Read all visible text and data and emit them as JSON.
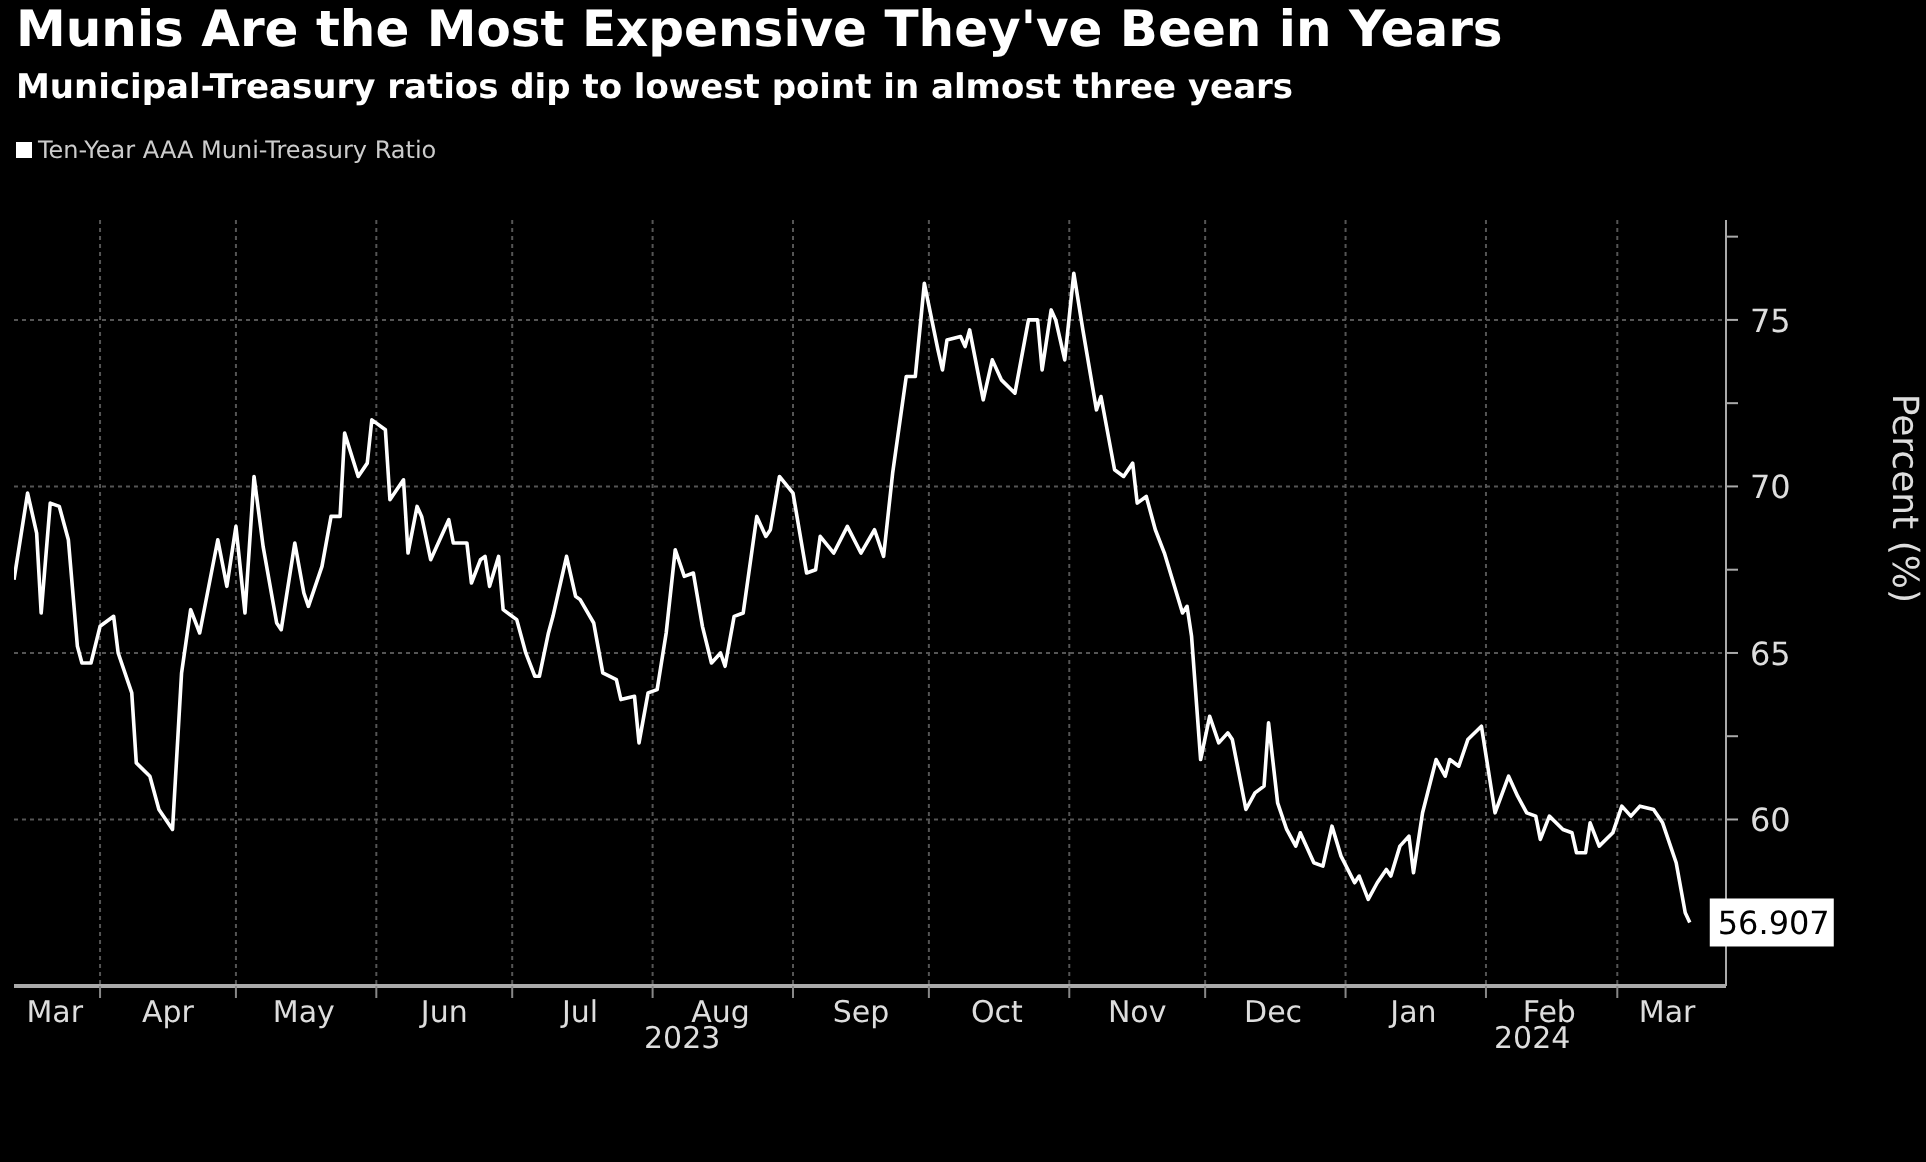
{
  "chart_data": {
    "type": "line",
    "title": "Munis Are the Most Expensive They've Been in Years",
    "subtitle": "Municipal-Treasury ratios dip to lowest point in almost three years",
    "ylabel": "Percent (%)",
    "legend": "top left",
    "grid": true,
    "xlim": [
      "2023-03-13",
      "2024-03-25"
    ],
    "xticks": [
      {
        "value": "2023-03-22",
        "label": "Mar"
      },
      {
        "value": "2023-04-01",
        "label": null
      },
      {
        "value": "2023-04-16",
        "label": "Apr"
      },
      {
        "value": "2023-05-01",
        "label": null
      },
      {
        "value": "2023-05-16",
        "label": "May"
      },
      {
        "value": "2023-06-01",
        "label": null
      },
      {
        "value": "2023-06-16",
        "label": "Jun"
      },
      {
        "value": "2023-07-01",
        "label": null
      },
      {
        "value": "2023-07-16",
        "label": "Jul"
      },
      {
        "value": "2023-08-01",
        "label": null
      },
      {
        "value": "2023-08-16",
        "label": "Aug"
      },
      {
        "value": "2023-09-01",
        "label": null
      },
      {
        "value": "2023-09-16",
        "label": "Sep"
      },
      {
        "value": "2023-10-01",
        "label": null
      },
      {
        "value": "2023-10-16",
        "label": "Oct"
      },
      {
        "value": "2023-11-01",
        "label": null
      },
      {
        "value": "2023-11-16",
        "label": "Nov"
      },
      {
        "value": "2023-12-01",
        "label": null
      },
      {
        "value": "2023-12-16",
        "label": "Dec"
      },
      {
        "value": "2024-01-01",
        "label": null
      },
      {
        "value": "2024-01-16",
        "label": "Jan"
      },
      {
        "value": "2024-02-01",
        "label": null
      },
      {
        "value": "2024-02-15",
        "label": "Feb"
      },
      {
        "value": "2024-03-01",
        "label": null
      },
      {
        "value": "2024-03-12",
        "label": "Mar"
      }
    ],
    "ylim": [
      55,
      78
    ],
    "yticks": [
      {
        "value": 57.5,
        "label": null
      },
      60,
      {
        "value": 62.5,
        "label": null
      },
      65,
      {
        "value": 67.5,
        "label": null
      },
      70,
      {
        "value": 72.5,
        "label": null
      },
      75,
      {
        "value": 77.5,
        "label": null
      }
    ],
    "annotations": [
      "2023",
      "2024",
      {
        "text": "56.907",
        "x": "2024-03-17",
        "y": 56.907
      }
    ],
    "x": [
      "2023-03-13",
      "2023-03-16",
      "2023-03-18",
      "2023-03-19",
      "2023-03-21",
      "2023-03-23",
      "2023-03-25",
      "2023-03-27",
      "2023-03-28",
      "2023-03-30",
      "2023-04-01",
      "2023-04-04",
      "2023-04-05",
      "2023-04-08",
      "2023-04-09",
      "2023-04-12",
      "2023-04-14",
      "2023-04-17",
      "2023-04-19",
      "2023-04-21",
      "2023-04-23",
      "2023-04-27",
      "2023-04-29",
      "2023-05-01",
      "2023-05-03",
      "2023-05-05",
      "2023-05-07",
      "2023-05-10",
      "2023-05-11",
      "2023-05-14",
      "2023-05-16",
      "2023-05-17",
      "2023-05-20",
      "2023-05-22",
      "2023-05-24",
      "2023-05-25",
      "2023-05-28",
      "2023-05-30",
      "2023-05-31",
      "2023-06-01",
      "2023-06-03",
      "2023-06-04",
      "2023-06-07",
      "2023-06-08",
      "2023-06-10",
      "2023-06-11",
      "2023-06-13",
      "2023-06-17",
      "2023-06-18",
      "2023-06-21",
      "2023-06-22",
      "2023-06-24",
      "2023-06-25",
      "2023-06-26",
      "2023-06-28",
      "2023-06-29",
      "2023-07-02",
      "2023-07-04",
      "2023-07-06",
      "2023-07-07",
      "2023-07-09",
      "2023-07-10",
      "2023-07-13",
      "2023-07-15",
      "2023-07-16",
      "2023-07-19",
      "2023-07-21",
      "2023-07-24",
      "2023-07-25",
      "2023-07-28",
      "2023-07-29",
      "2023-07-31",
      "2023-08-02",
      "2023-08-04",
      "2023-08-06",
      "2023-08-08",
      "2023-08-10",
      "2023-08-12",
      "2023-08-14",
      "2023-08-16",
      "2023-08-17",
      "2023-08-19",
      "2023-08-21",
      "2023-08-24",
      "2023-08-26",
      "2023-08-27",
      "2023-08-29",
      "2023-09-01",
      "2023-09-04",
      "2023-09-06",
      "2023-09-07",
      "2023-09-10",
      "2023-09-13",
      "2023-09-16",
      "2023-09-19",
      "2023-09-21",
      "2023-09-23",
      "2023-09-26",
      "2023-09-28",
      "2023-09-30",
      "2023-10-03",
      "2023-10-04",
      "2023-10-05",
      "2023-10-08",
      "2023-10-09",
      "2023-10-10",
      "2023-10-13",
      "2023-10-15",
      "2023-10-17",
      "2023-10-20",
      "2023-10-23",
      "2023-10-25",
      "2023-10-26",
      "2023-10-28",
      "2023-10-29",
      "2023-10-31",
      "2023-11-02",
      "2023-11-04",
      "2023-11-07",
      "2023-11-08",
      "2023-11-11",
      "2023-11-13",
      "2023-11-15",
      "2023-11-16",
      "2023-11-18",
      "2023-11-20",
      "2023-11-22",
      "2023-11-26",
      "2023-11-27",
      "2023-11-28",
      "2023-11-30",
      "2023-12-02",
      "2023-12-04",
      "2023-12-06",
      "2023-12-07",
      "2023-12-10",
      "2023-12-12",
      "2023-12-14",
      "2023-12-15",
      "2023-12-17",
      "2023-12-19",
      "2023-12-21",
      "2023-12-22",
      "2023-12-25",
      "2023-12-27",
      "2023-12-29",
      "2023-12-31",
      "2024-01-03",
      "2024-01-04",
      "2024-01-06",
      "2024-01-08",
      "2024-01-10",
      "2024-01-11",
      "2024-01-13",
      "2024-01-15",
      "2024-01-16",
      "2024-01-18",
      "2024-01-21",
      "2024-01-23",
      "2024-01-24",
      "2024-01-26",
      "2024-01-28",
      "2024-01-31",
      "2024-02-03",
      "2024-02-06",
      "2024-02-08",
      "2024-02-10",
      "2024-02-12",
      "2024-02-13",
      "2024-02-15",
      "2024-02-18",
      "2024-02-20",
      "2024-02-21",
      "2024-02-23",
      "2024-02-24",
      "2024-02-26",
      "2024-02-29",
      "2024-03-02",
      "2024-03-04",
      "2024-03-06",
      "2024-03-09",
      "2024-03-11",
      "2024-03-14",
      "2024-03-16",
      "2024-03-17"
    ],
    "series": [
      {
        "name": "Ten-Year AAA Muni-Treasury Ratio",
        "color": "#ffffff",
        "values": [
          67.2,
          69.8,
          68.6,
          66.2,
          69.5,
          69.4,
          68.4,
          65.2,
          64.7,
          64.7,
          65.8,
          66.1,
          65.0,
          63.8,
          61.7,
          61.3,
          60.3,
          59.7,
          64.4,
          66.3,
          65.6,
          68.4,
          67.0,
          68.8,
          66.2,
          70.3,
          68.2,
          65.9,
          65.7,
          68.3,
          66.8,
          66.4,
          67.6,
          69.1,
          69.1,
          71.6,
          70.3,
          70.7,
          72.0,
          71.9,
          71.7,
          69.6,
          70.2,
          68.0,
          69.4,
          69.1,
          67.8,
          69.0,
          68.3,
          68.3,
          67.1,
          67.8,
          67.9,
          67.0,
          67.9,
          66.3,
          66.0,
          65.0,
          64.3,
          64.3,
          65.6,
          66.1,
          67.9,
          66.7,
          66.6,
          65.9,
          64.4,
          64.2,
          63.6,
          63.7,
          62.3,
          63.8,
          63.9,
          65.6,
          68.1,
          67.3,
          67.4,
          65.8,
          64.7,
          65.0,
          64.6,
          66.1,
          66.2,
          69.1,
          68.5,
          68.7,
          70.3,
          69.8,
          67.4,
          67.5,
          68.5,
          68.0,
          68.8,
          68.0,
          68.7,
          67.9,
          70.4,
          73.3,
          73.3,
          76.1,
          74.1,
          73.5,
          74.4,
          74.5,
          74.2,
          74.7,
          72.6,
          73.8,
          73.2,
          72.8,
          75.0,
          75.0,
          73.5,
          75.3,
          75.0,
          73.8,
          76.4,
          74.7,
          72.3,
          72.7,
          70.5,
          70.3,
          70.7,
          69.5,
          69.7,
          68.7,
          68.0,
          66.2,
          66.4,
          65.5,
          61.8,
          63.1,
          62.3,
          62.6,
          62.4,
          60.3,
          60.8,
          61.0,
          62.9,
          60.5,
          59.7,
          59.2,
          59.6,
          58.7,
          58.6,
          59.8,
          58.9,
          58.1,
          58.3,
          57.6,
          58.1,
          58.5,
          58.3,
          59.2,
          59.5,
          58.4,
          60.2,
          61.8,
          61.3,
          61.8,
          61.6,
          62.4,
          62.8,
          60.2,
          61.3,
          60.7,
          60.2,
          60.1,
          59.4,
          60.1,
          59.7,
          59.6,
          59.0,
          59.0,
          59.9,
          59.2,
          59.6,
          60.4,
          60.1,
          60.4,
          60.3,
          59.9,
          58.7,
          57.2,
          56.907
        ]
      }
    ]
  }
}
